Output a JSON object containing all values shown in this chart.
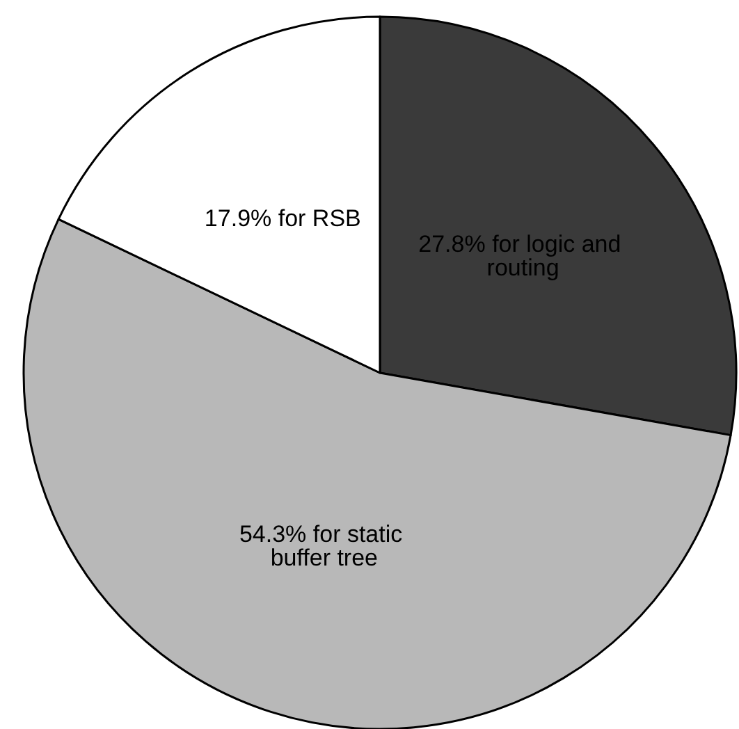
{
  "chart_data": {
    "type": "pie",
    "categories": [
      "27.8% for logic and routing",
      "54.3% for static buffer tree",
      "17.9% for RSB"
    ],
    "values": [
      27.8,
      54.3,
      17.9
    ],
    "colors": [
      "#3a3a3a",
      "#b8b8b8",
      "#ffffff"
    ]
  }
}
